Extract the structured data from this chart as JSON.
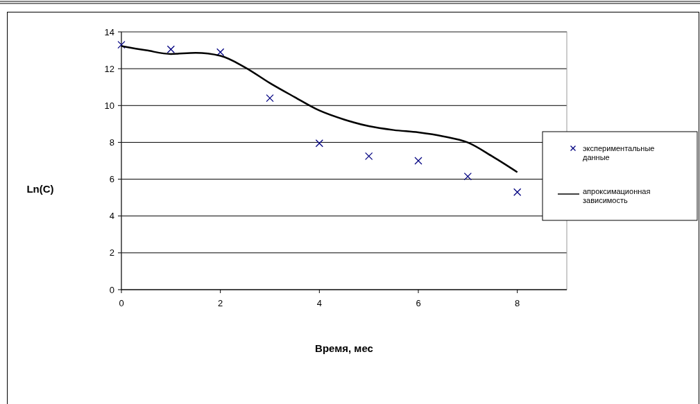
{
  "chart_data": {
    "type": "scatter",
    "xlabel": "Время, мес",
    "ylabel": "Ln(C)",
    "xlim": [
      0,
      9
    ],
    "xticks": [
      0,
      2,
      4,
      6,
      8
    ],
    "ylim": [
      0,
      14
    ],
    "yticks": [
      0,
      2,
      4,
      6,
      8,
      10,
      12,
      14
    ],
    "grid": "y",
    "legend": "right",
    "marker": "cross",
    "series": [
      {
        "name": "экспериментальные данные",
        "type": "scatter",
        "color": "#000080",
        "x": [
          0,
          1,
          2,
          3,
          4,
          5,
          6,
          7,
          8
        ],
        "values": [
          13.3,
          13.05,
          12.9,
          10.4,
          7.95,
          7.25,
          7.0,
          6.15,
          5.3
        ]
      },
      {
        "name": "апроксимационная зависимость",
        "type": "line",
        "color": "#000000",
        "line_style": "solid",
        "marker": "none",
        "x": [
          0,
          0.5,
          1,
          1.5,
          2,
          2.5,
          3,
          3.5,
          4,
          4.5,
          5,
          5.5,
          6,
          6.5,
          7,
          7.5,
          8
        ],
        "values": [
          13.23,
          13.0,
          12.8,
          12.86,
          12.7,
          12.07,
          11.22,
          10.46,
          9.73,
          9.24,
          8.88,
          8.67,
          8.54,
          8.33,
          7.99,
          7.23,
          6.38
        ]
      }
    ]
  }
}
